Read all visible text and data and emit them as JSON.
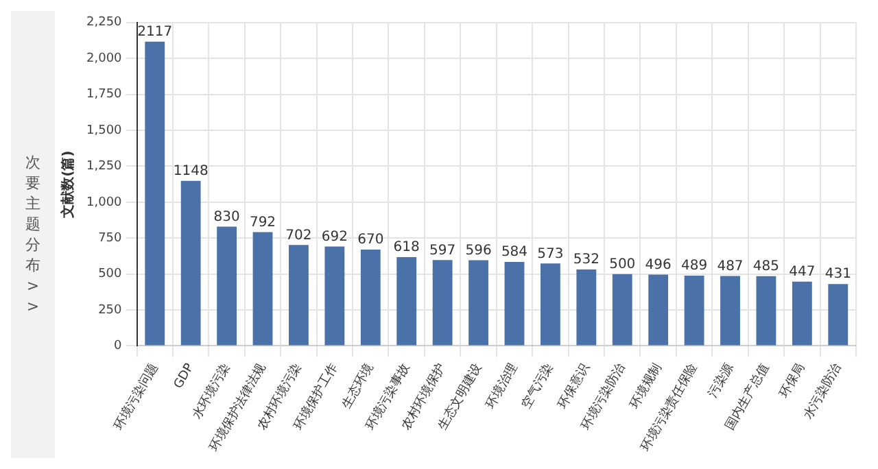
{
  "chart_data": {
    "type": "bar",
    "ylabel": "文献数(篇)",
    "annotations": [
      "次要主题分布 >>"
    ],
    "categories": [
      "环境污染问题",
      "GDP",
      "水环境污染",
      "环境保护法律法规",
      "农村环境污染",
      "环境保护工作",
      "生态环境",
      "环境污染事故",
      "农村环境保护",
      "生态文明建设",
      "环境治理",
      "空气污染",
      "环保意识",
      "环境污染防治",
      "环境规制",
      "环境污染责任保险",
      "污染源",
      "国内生产总值",
      "环保局",
      "水污染防治"
    ],
    "values": [
      2117,
      1148,
      830,
      792,
      702,
      692,
      670,
      618,
      597,
      596,
      584,
      573,
      532,
      500,
      496,
      489,
      487,
      485,
      447,
      431
    ],
    "color": "#4a72a8",
    "ylim": [
      0,
      2250
    ],
    "yticks": [
      0,
      250,
      500,
      750,
      {
        "value": 1000,
        "label": "1,000"
      },
      {
        "value": 1250,
        "label": "1,250"
      },
      {
        "value": 1500,
        "label": "1,500"
      },
      {
        "value": 1750,
        "label": "1,750"
      },
      {
        "value": 2000,
        "label": "2,000"
      },
      {
        "value": 2250,
        "label": "2,250"
      }
    ],
    "grid": true,
    "data_labels": true
  }
}
